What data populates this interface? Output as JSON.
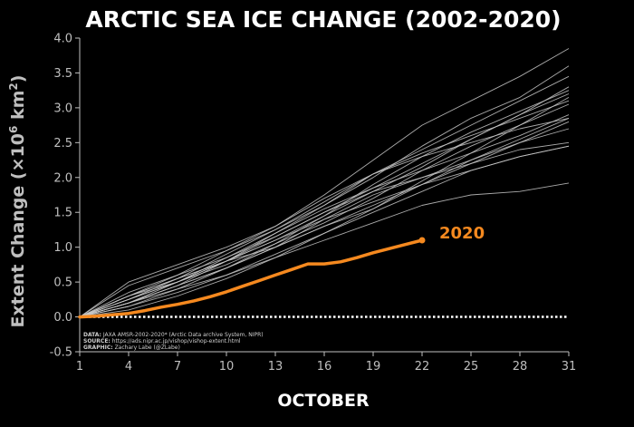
{
  "chart_data": {
    "type": "line",
    "title": "ARCTIC SEA ICE CHANGE (2002-2020)",
    "xlabel": "OCTOBER",
    "ylabel_main": "Extent Change (",
    "ylabel_symbol": "×10",
    "ylabel_exp1": "6",
    "ylabel_unit": " km",
    "ylabel_exp2": "2",
    "ylabel_close": ")",
    "xlim": [
      1,
      31
    ],
    "ylim": [
      -0.5,
      4.0
    ],
    "xticks": [
      1,
      4,
      7,
      10,
      13,
      16,
      19,
      22,
      25,
      28,
      31
    ],
    "yticks": [
      "-0.5",
      "0.0",
      "0.5",
      "1.0",
      "1.5",
      "2.0",
      "2.5",
      "3.0",
      "3.5",
      "4.0"
    ],
    "grid": false,
    "zero_line": "dotted",
    "colors": {
      "background": "#000000",
      "past_years": "#c8c8c8",
      "highlight": "#f5891f",
      "text": "#ffffff",
      "axis_text": "#bfbfbf"
    },
    "highlight_series": {
      "name": "2020",
      "x": [
        1,
        2,
        3,
        4,
        5,
        6,
        7,
        8,
        9,
        10,
        11,
        12,
        13,
        14,
        15,
        16,
        17,
        18,
        19,
        20,
        21,
        22
      ],
      "values": [
        0.0,
        0.01,
        0.03,
        0.05,
        0.09,
        0.14,
        0.18,
        0.23,
        0.29,
        0.36,
        0.44,
        0.52,
        0.6,
        0.68,
        0.76,
        0.76,
        0.79,
        0.85,
        0.92,
        0.98,
        1.04,
        1.1
      ]
    },
    "series": [
      {
        "x": [
          1,
          4,
          7,
          10,
          13,
          16,
          19,
          22,
          25,
          28,
          31
        ],
        "values": [
          0.0,
          0.5,
          0.75,
          1.0,
          1.3,
          1.75,
          2.25,
          2.75,
          3.1,
          3.45,
          3.85
        ]
      },
      {
        "x": [
          1,
          4,
          7,
          10,
          13,
          16,
          19,
          22,
          25,
          28,
          31
        ],
        "values": [
          0.0,
          0.45,
          0.7,
          0.95,
          1.25,
          1.6,
          2.0,
          2.45,
          2.85,
          3.15,
          3.6
        ]
      },
      {
        "x": [
          1,
          4,
          7,
          10,
          13,
          16,
          19,
          22,
          25,
          28,
          31
        ],
        "values": [
          0.0,
          0.2,
          0.45,
          0.8,
          1.2,
          1.6,
          2.05,
          2.4,
          2.75,
          3.1,
          3.45
        ]
      },
      {
        "x": [
          1,
          4,
          7,
          10,
          13,
          16,
          19,
          22,
          25,
          28,
          31
        ],
        "values": [
          0.0,
          0.3,
          0.55,
          0.8,
          1.1,
          1.45,
          1.8,
          2.15,
          2.55,
          2.9,
          3.2
        ]
      },
      {
        "x": [
          1,
          4,
          7,
          10,
          13,
          16,
          19,
          22,
          25,
          28,
          31
        ],
        "values": [
          0.0,
          0.25,
          0.5,
          0.75,
          1.05,
          1.35,
          1.7,
          2.1,
          2.45,
          2.75,
          3.05
        ]
      },
      {
        "x": [
          1,
          4,
          7,
          10,
          13,
          16,
          19,
          22,
          25,
          28,
          31
        ],
        "values": [
          0.0,
          0.3,
          0.55,
          0.8,
          1.0,
          1.3,
          1.55,
          1.9,
          2.25,
          2.55,
          2.85
        ]
      },
      {
        "x": [
          1,
          4,
          7,
          10,
          13,
          16,
          19,
          22,
          25,
          28,
          31
        ],
        "values": [
          0.0,
          0.2,
          0.45,
          0.7,
          1.0,
          1.4,
          1.75,
          2.0,
          2.25,
          2.5,
          2.7
        ]
      },
      {
        "x": [
          1,
          4,
          7,
          10,
          13,
          16,
          19,
          22,
          25,
          28,
          31
        ],
        "values": [
          0.0,
          0.35,
          0.6,
          0.85,
          1.15,
          1.5,
          1.8,
          2.0,
          2.2,
          2.4,
          2.5
        ]
      },
      {
        "x": [
          1,
          4,
          7,
          10,
          13,
          16,
          19,
          22,
          25,
          28,
          31
        ],
        "values": [
          0.0,
          0.2,
          0.4,
          0.6,
          0.9,
          1.2,
          1.5,
          1.8,
          2.1,
          2.3,
          2.45
        ]
      },
      {
        "x": [
          1,
          4,
          7,
          10,
          13,
          16,
          19,
          22,
          25,
          28,
          31
        ],
        "values": [
          0.0,
          0.15,
          0.35,
          0.6,
          0.85,
          1.1,
          1.35,
          1.6,
          1.75,
          1.8,
          1.92
        ]
      },
      {
        "x": [
          1,
          4,
          7,
          10,
          13,
          16,
          19,
          22,
          25,
          28,
          31
        ],
        "values": [
          0.0,
          0.25,
          0.55,
          0.9,
          1.25,
          1.65,
          2.05,
          2.35,
          2.6,
          2.85,
          3.1
        ]
      },
      {
        "x": [
          1,
          4,
          7,
          10,
          13,
          16,
          19,
          22,
          25,
          28,
          31
        ],
        "values": [
          0.0,
          0.1,
          0.3,
          0.55,
          0.85,
          1.2,
          1.55,
          1.95,
          2.35,
          2.75,
          3.15
        ]
      },
      {
        "x": [
          1,
          4,
          7,
          10,
          13,
          16,
          19,
          22,
          25,
          28,
          31
        ],
        "values": [
          0.0,
          0.3,
          0.6,
          0.95,
          1.3,
          1.7,
          2.05,
          2.3,
          2.5,
          2.7,
          2.85
        ]
      },
      {
        "x": [
          1,
          4,
          7,
          10,
          13,
          16,
          19,
          22,
          25,
          28,
          31
        ],
        "values": [
          0.0,
          0.2,
          0.45,
          0.7,
          1.0,
          1.3,
          1.6,
          1.9,
          2.2,
          2.5,
          2.8
        ]
      },
      {
        "x": [
          1,
          4,
          7,
          10,
          13,
          16,
          19,
          22,
          25,
          28,
          31
        ],
        "values": [
          0.0,
          0.15,
          0.4,
          0.7,
          1.05,
          1.45,
          1.9,
          2.3,
          2.65,
          2.95,
          3.25
        ]
      },
      {
        "x": [
          1,
          4,
          7,
          10,
          13,
          16,
          19,
          22,
          25,
          28,
          31
        ],
        "values": [
          0.0,
          0.3,
          0.5,
          0.8,
          1.1,
          1.4,
          1.65,
          1.9,
          2.1,
          2.3,
          2.45
        ]
      },
      {
        "x": [
          1,
          4,
          7,
          10,
          13,
          16,
          19,
          22,
          25,
          28,
          31
        ],
        "values": [
          0.0,
          0.25,
          0.5,
          0.85,
          1.2,
          1.55,
          1.85,
          2.1,
          2.35,
          2.6,
          2.9
        ]
      },
      {
        "x": [
          1,
          4,
          7,
          10,
          13,
          16,
          19,
          22,
          25,
          28,
          31
        ],
        "values": [
          0.0,
          0.2,
          0.5,
          0.8,
          1.15,
          1.5,
          1.85,
          2.2,
          2.55,
          2.9,
          3.3
        ]
      }
    ],
    "annotation": "2020",
    "credits": [
      {
        "label": "DATA:",
        "text": " JAXA AMSR-2002-2020* (Arctic Data archive System, NIPR)"
      },
      {
        "label": "SOURCE:",
        "text": " https://ads.nipr.ac.jp/vishop/vishop-extent.html"
      },
      {
        "label": "GRAPHIC:",
        "text": " Zachary Labe (@ZLabe)"
      }
    ]
  }
}
